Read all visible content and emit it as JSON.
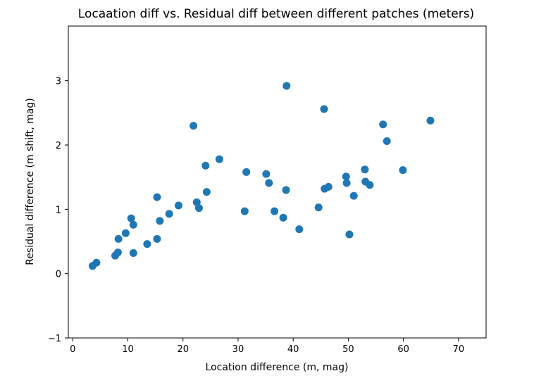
{
  "chart_data": {
    "type": "scatter",
    "title": "Locaation diff vs. Residual diff between different patches (meters)",
    "xlabel": "Location difference (m, mag)",
    "ylabel": "Residual difference (m shift, mag)",
    "xlim": [
      -0.8,
      75
    ],
    "ylim": [
      -1,
      3.85
    ],
    "xticks": [
      0,
      10,
      20,
      30,
      40,
      50,
      60,
      70
    ],
    "yticks": [
      -1,
      0,
      1,
      2,
      3
    ],
    "grid": false,
    "legend": "none",
    "marker_color": "#1f77b4",
    "series": [
      {
        "x": [
          3.6,
          4.3,
          7.7,
          8.2,
          8.3,
          9.6,
          10.6,
          11.0,
          11.0,
          13.5,
          15.3,
          15.3,
          15.8,
          17.5,
          19.2,
          21.9,
          22.5,
          22.9,
          24.1,
          24.3,
          26.6,
          31.2,
          31.5,
          35.1,
          35.6,
          36.6,
          38.2,
          38.7,
          38.8,
          41.1,
          44.6,
          45.6,
          45.7,
          46.4,
          49.6,
          49.7,
          50.2,
          51.0,
          53.0,
          53.1,
          53.9,
          56.3,
          57.0,
          59.9,
          64.9
        ],
        "y": [
          0.12,
          0.17,
          0.28,
          0.33,
          0.54,
          0.63,
          0.86,
          0.76,
          0.32,
          0.46,
          1.19,
          0.54,
          0.82,
          0.93,
          1.06,
          2.3,
          1.11,
          1.02,
          1.68,
          1.27,
          1.78,
          0.97,
          1.58,
          1.55,
          1.41,
          0.97,
          0.87,
          1.3,
          2.92,
          0.69,
          1.03,
          2.56,
          1.32,
          1.35,
          1.51,
          1.41,
          0.61,
          1.21,
          1.62,
          1.43,
          1.38,
          2.32,
          2.06,
          1.61,
          2.38
        ]
      }
    ]
  }
}
